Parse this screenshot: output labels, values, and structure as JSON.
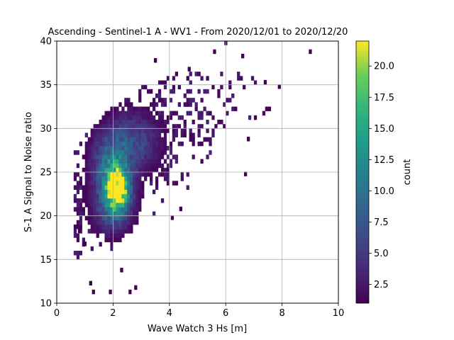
{
  "chart_data": {
    "type": "heatmap",
    "title": "Ascending - Sentinel-1 A - WV1 - From 2020/12/01 to 2020/12/20",
    "xlabel": "Wave Watch 3 Hs [m]",
    "ylabel": "S-1 A Signal to Noise ratio",
    "xlim": [
      0,
      10
    ],
    "ylim": [
      10,
      40
    ],
    "x_ticks": [
      "0",
      "2",
      "4",
      "6",
      "8",
      "10"
    ],
    "y_ticks": [
      "10",
      "15",
      "20",
      "25",
      "30",
      "35",
      "40"
    ],
    "grid": true,
    "bin_size": {
      "x": 0.1,
      "y": 0.5
    },
    "colorbar": {
      "label": "count",
      "min": 1,
      "max": 22,
      "ticks": [
        "2.5",
        "5.0",
        "7.5",
        "10.0",
        "12.5",
        "15.0",
        "17.5",
        "20.0"
      ],
      "colormap": "viridis"
    },
    "density_model": {
      "note_source": "2D histogram counts estimated from figure",
      "peak_count": 22,
      "components": [
        {
          "hs": 2.15,
          "snr": 23.0,
          "hs_spread": 0.3,
          "snr_spread": 1.6,
          "count": 21
        },
        {
          "hs": 1.9,
          "snr": 25.5,
          "hs_spread": 0.45,
          "snr_spread": 2.5,
          "count": 9
        },
        {
          "hs": 2.7,
          "snr": 28.5,
          "hs_spread": 0.7,
          "snr_spread": 2.5,
          "count": 6
        },
        {
          "hs": 2.0,
          "snr": 20.5,
          "hs_spread": 0.5,
          "snr_spread": 2.0,
          "count": 6
        }
      ],
      "outliers": [
        [
          9.0,
          38.8
        ],
        [
          6.0,
          39.8
        ],
        [
          6.6,
          38.3
        ],
        [
          5.6,
          38.8
        ],
        [
          3.5,
          37.8
        ],
        [
          4.7,
          36.8
        ],
        [
          7.9,
          34.8
        ],
        [
          7.4,
          35.3
        ],
        [
          6.8,
          28.8
        ],
        [
          6.7,
          24.8
        ],
        [
          1.2,
          12.3
        ],
        [
          1.3,
          11.3
        ],
        [
          1.9,
          11.3
        ],
        [
          2.6,
          11.3
        ],
        [
          2.8,
          11.8
        ],
        [
          0.8,
          18.3
        ],
        [
          1.0,
          16.8
        ],
        [
          2.3,
          13.8
        ],
        [
          4.4,
          20.8
        ],
        [
          4.1,
          19.8
        ]
      ]
    }
  }
}
